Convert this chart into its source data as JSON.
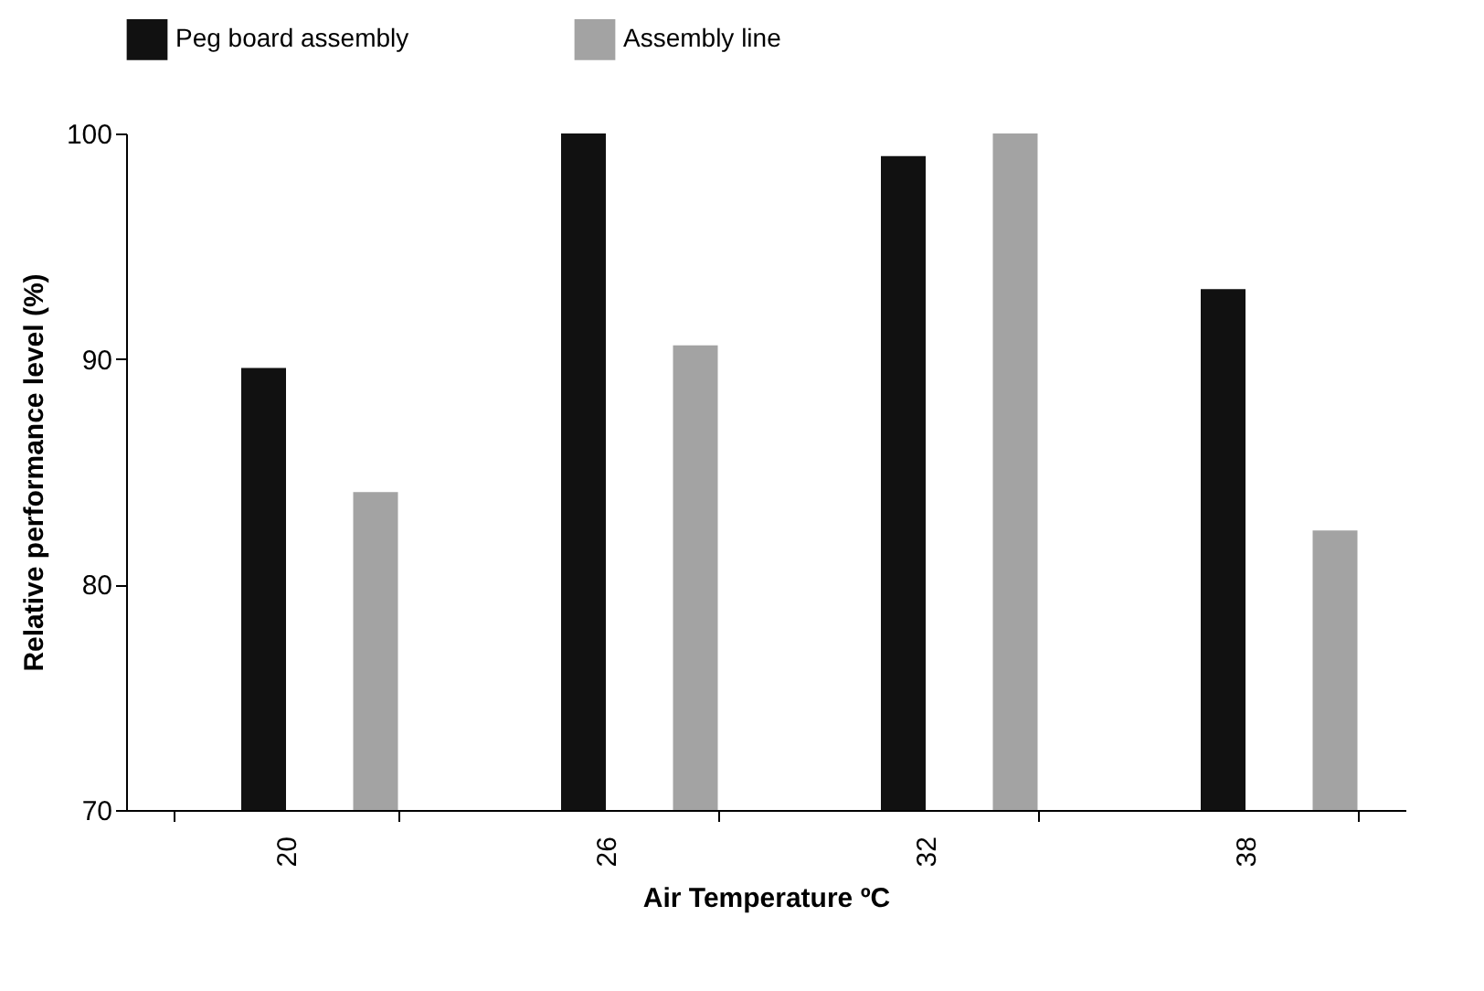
{
  "chart_data": {
    "type": "bar",
    "xlabel": "Air Temperature ºC",
    "ylabel": "Relative performance level (%)",
    "categories": [
      "20",
      "26",
      "32",
      "38"
    ],
    "series": [
      {
        "name": "Peg board assembly",
        "color": "#111111",
        "values": [
          89.6,
          100,
          99,
          93.1
        ]
      },
      {
        "name": "Assembly line",
        "color": "#a3a3a3",
        "values": [
          84.1,
          90.6,
          100,
          82.4
        ]
      }
    ],
    "ylim": [
      70,
      100
    ],
    "yticks": [
      70,
      80,
      90,
      100
    ],
    "grid": false,
    "legend": "top left"
  }
}
